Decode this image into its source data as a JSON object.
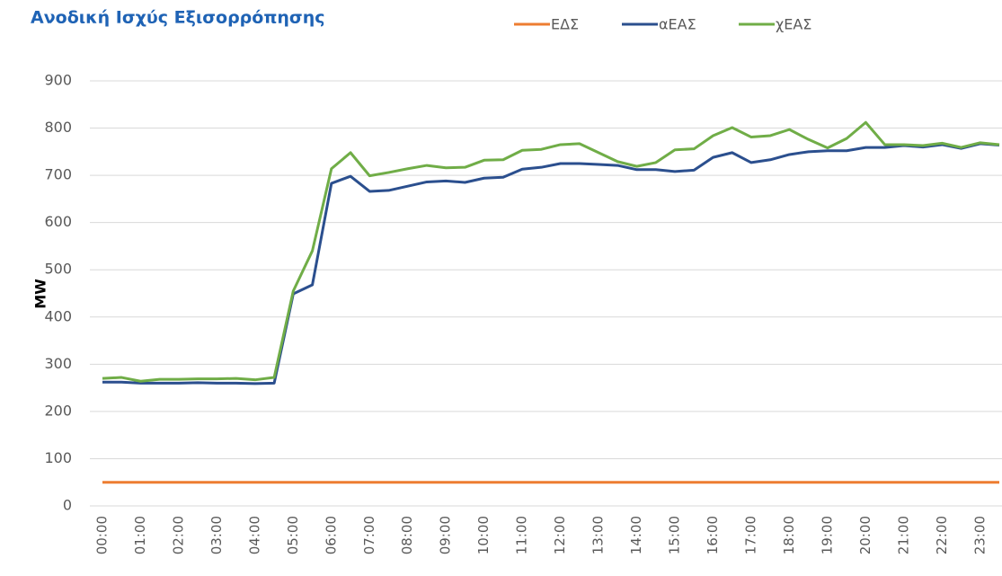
{
  "chart_data": {
    "type": "line",
    "title": "Ανοδική Ισχύς Εξισορρόπησης",
    "y_label": "MW",
    "categories": [
      "00:00",
      null,
      "01:00",
      null,
      "02:00",
      null,
      "03:00",
      null,
      "04:00",
      null,
      "05:00",
      null,
      "06:00",
      null,
      "07:00",
      null,
      "08:00",
      null,
      "09:00",
      null,
      "10:00",
      null,
      "11:00",
      null,
      "12:00",
      null,
      "13:00",
      null,
      "14:00",
      null,
      "15:00",
      null,
      "16:00",
      null,
      "17:00",
      null,
      "18:00",
      null,
      "19:00",
      null,
      "20:00",
      null,
      "21:00",
      null,
      "22:00",
      null,
      "23:00",
      null
    ],
    "series": [
      {
        "name": "ΕΔΣ",
        "color": "#ed7d31",
        "values": [
          50,
          50,
          50,
          50,
          50,
          50,
          50,
          50,
          50,
          50,
          50,
          50,
          50,
          50,
          50,
          50,
          50,
          50,
          50,
          50,
          50,
          50,
          50,
          50,
          50,
          50,
          50,
          50,
          50,
          50,
          50,
          50,
          50,
          50,
          50,
          50,
          50,
          50,
          50,
          50,
          50,
          50,
          50,
          50,
          50,
          50,
          50,
          50
        ]
      },
      {
        "name": "αΕΑΣ",
        "color": "#2b4f8e",
        "values": [
          262,
          262,
          260,
          260,
          260,
          261,
          260,
          260,
          259,
          260,
          449,
          468,
          683,
          698,
          666,
          668,
          677,
          686,
          688,
          685,
          694,
          696,
          713,
          717,
          725,
          725,
          723,
          721,
          712,
          712,
          708,
          711,
          738,
          748,
          727,
          733,
          744,
          750,
          752,
          752,
          759,
          759,
          763,
          760,
          765,
          757,
          767,
          764
        ]
      },
      {
        "name": "χΕΑΣ",
        "color": "#70ad47",
        "values": [
          270,
          272,
          264,
          268,
          268,
          269,
          269,
          270,
          267,
          272,
          455,
          540,
          714,
          748,
          699,
          706,
          714,
          721,
          716,
          717,
          732,
          733,
          753,
          755,
          765,
          767,
          748,
          729,
          719,
          727,
          754,
          756,
          784,
          801,
          781,
          784,
          797,
          776,
          758,
          778,
          812,
          765,
          765,
          763,
          768,
          759,
          769,
          765
        ]
      }
    ],
    "ylim": [
      0,
      900
    ],
    "yticks": [
      0,
      100,
      200,
      300,
      400,
      500,
      600,
      700,
      800,
      900
    ],
    "grid": true,
    "legend": "top"
  }
}
